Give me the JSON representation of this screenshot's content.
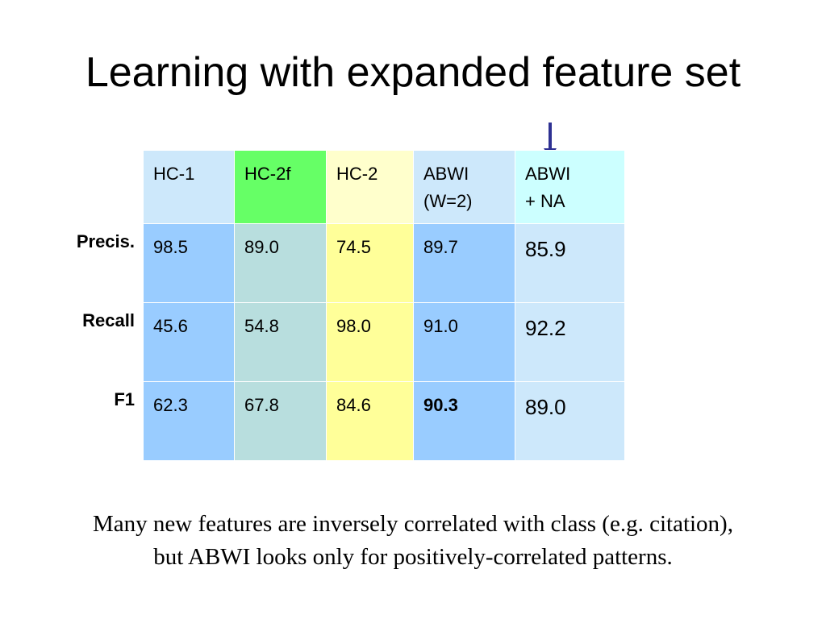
{
  "title": "Learning with expanded feature set",
  "colors": {
    "hc1_header": "#cde8fb",
    "hc1_body": "#99ccff",
    "hc2f_header": "#66ff66",
    "hc2f_body": "#b8dede",
    "hc2_header": "#ffffcc",
    "hc2_body": "#ffff99",
    "abwi_header": "#cde8fb",
    "abwi_body": "#99ccff",
    "abwina_header": "#ccffff",
    "abwina_body": "#cde8fb",
    "arrow": "#2e3192"
  },
  "table": {
    "columns": [
      {
        "line1": "HC-1",
        "line2": ""
      },
      {
        "line1": "HC-2f",
        "line2": ""
      },
      {
        "line1": "HC-2",
        "line2": ""
      },
      {
        "line1": "ABWI",
        "line2": "(W=2)"
      },
      {
        "line1": "ABWI",
        "line2": "+ NA"
      }
    ],
    "rows": [
      {
        "label": "Precis.",
        "values": [
          "98.5",
          "89.0",
          "74.5",
          "89.7",
          "85.9"
        ]
      },
      {
        "label": "Recall",
        "values": [
          "45.6",
          "54.8",
          "98.0",
          "91.0",
          "92.2"
        ]
      },
      {
        "label": "F1",
        "values": [
          "62.3",
          "67.8",
          "84.6",
          "90.3",
          "89.0"
        ]
      }
    ],
    "bold_cell": {
      "row": 2,
      "col": 3
    }
  },
  "caption": {
    "line1": "Many new features are inversely correlated with class (e.g. citation),",
    "line2": "but ABWI looks only for positively-correlated patterns."
  }
}
